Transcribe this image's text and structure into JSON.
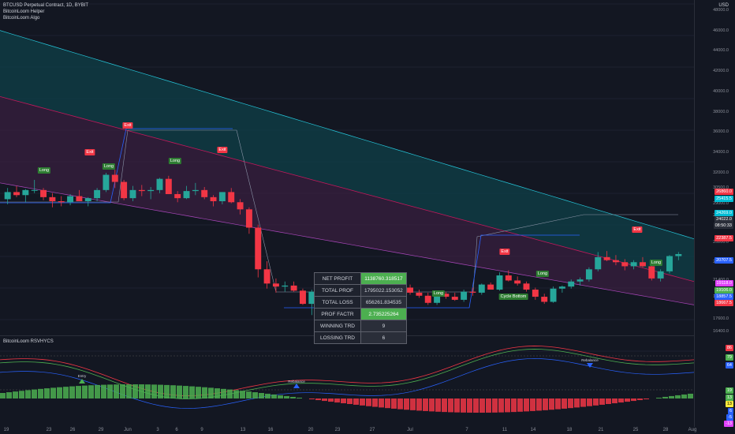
{
  "legend": {
    "title": "BTCUSD Perpetual Contract, 1D, BYBIT",
    "helper": "BitcoinLoom Helper",
    "algo": "BitcoinLoom Algo"
  },
  "axis": {
    "unit": "USD",
    "ticks": [
      "48000.0",
      "46000.0",
      "44000.0",
      "42000.0",
      "40000.0",
      "38000.0",
      "36000.0",
      "34000.0",
      "32000.0",
      "30500.0",
      "29000.0",
      "27800.0",
      "25200.0",
      "23200.0",
      "21400.0",
      "19800.0",
      "17600.0",
      "16400.0"
    ],
    "badges": [
      {
        "text": "26860.0",
        "color": "#f23645"
      },
      {
        "text": "25415.5",
        "color": "#00bcd4"
      },
      {
        "text": "24269.0",
        "color": "#00bcd4"
      },
      {
        "text": "24022.0",
        "color": "#2a2e39"
      },
      {
        "text": "08:50:33",
        "color": "#2a2e39"
      },
      {
        "text": "22387.5",
        "color": "#f23645"
      },
      {
        "text": "20707.5",
        "color": "#2962ff"
      },
      {
        "text": "19118.0",
        "color": "#e040fb"
      },
      {
        "text": "19106.0",
        "color": "#4caf50"
      },
      {
        "text": "18857.5",
        "color": "#2962ff"
      },
      {
        "text": "18667.5",
        "color": "#f23645"
      }
    ],
    "sub_badges": [
      {
        "text": "86",
        "color": "#f23645"
      },
      {
        "text": "79",
        "color": "#4caf50"
      },
      {
        "text": "64",
        "color": "#2962ff"
      },
      {
        "text": "19",
        "color": "#4caf50"
      },
      {
        "text": "13",
        "color": "#4caf50"
      },
      {
        "text": "13",
        "color": "#ffeb3b"
      },
      {
        "text": "6",
        "color": "#2962ff"
      },
      {
        "text": "-5",
        "color": "#2962ff"
      },
      {
        "text": "-13",
        "color": "#e040fb"
      }
    ],
    "x_labels": [
      "19",
      "23",
      "26",
      "29",
      "Jun",
      "3",
      "6",
      "9",
      "13",
      "16",
      "20",
      "23",
      "27",
      "Jul",
      "7",
      "11",
      "14",
      "18",
      "21",
      "25",
      "28",
      "Aug"
    ]
  },
  "signals": {
    "long": "Long",
    "exit": "Exit",
    "cycle_bottom": "Cycle Bottom"
  },
  "stats": [
    {
      "label": "NET PROFIT",
      "value": "1138760.318517",
      "good": true
    },
    {
      "label": "TOTAL PROF",
      "value": "1795022.153052",
      "good": false
    },
    {
      "label": "TOTAL LOSS",
      "value": "656261.834535",
      "good": false
    },
    {
      "label": "PROF FACTR",
      "value": "2.735225264",
      "good": true
    },
    {
      "label": "WINNING TRD",
      "value": "9",
      "good": false
    },
    {
      "label": "LOSSING TRD",
      "value": "6",
      "good": false
    }
  ],
  "oscillator": {
    "title": "BitcoinLoom RSVHYCS",
    "entry": "Entry",
    "rebalance": "Rebalance",
    "rebalance2": "Rebalance"
  },
  "chart_data": {
    "type": "line",
    "ylim": [
      16000,
      49000
    ],
    "candles": [
      [
        29400,
        30500,
        28900,
        30100
      ],
      [
        30100,
        30700,
        29600,
        29800
      ],
      [
        29800,
        30400,
        29100,
        30300
      ],
      [
        30300,
        31300,
        30000,
        30300
      ],
      [
        30300,
        30500,
        29300,
        29600
      ],
      [
        29600,
        30000,
        28600,
        29200
      ],
      [
        29200,
        29700,
        28700,
        29100
      ],
      [
        29100,
        29900,
        28800,
        29700
      ],
      [
        29700,
        30300,
        29300,
        29200
      ],
      [
        29200,
        29600,
        28700,
        29500
      ],
      [
        29500,
        30500,
        29200,
        30300
      ],
      [
        30300,
        32000,
        30100,
        31800
      ],
      [
        31800,
        32300,
        30500,
        31100
      ],
      [
        31100,
        31300,
        29300,
        29500
      ],
      [
        29500,
        30700,
        29200,
        30300
      ],
      [
        30300,
        30800,
        29700,
        30200
      ],
      [
        30200,
        30600,
        29400,
        30300
      ],
      [
        30300,
        31500,
        30000,
        31400
      ],
      [
        31400,
        31700,
        29900,
        29900
      ],
      [
        29900,
        30200,
        29100,
        29500
      ],
      [
        29500,
        30700,
        29400,
        30200
      ],
      [
        30200,
        31000,
        29800,
        30300
      ],
      [
        30300,
        30600,
        29400,
        29600
      ],
      [
        29600,
        29800,
        28700,
        29200
      ],
      [
        29200,
        30100,
        28900,
        30100
      ],
      [
        30100,
        30500,
        29000,
        29100
      ],
      [
        29100,
        29400,
        27900,
        28400
      ],
      [
        28400,
        28600,
        26000,
        26600
      ],
      [
        26600,
        26900,
        21700,
        22500
      ],
      [
        22500,
        23300,
        20600,
        21100
      ],
      [
        21100,
        21600,
        20200,
        20800
      ],
      [
        20800,
        21300,
        20300,
        20900
      ],
      [
        20900,
        21300,
        20300,
        20400
      ],
      [
        20400,
        20600,
        19000,
        19100
      ],
      [
        19100,
        20500,
        18000,
        20300
      ],
      [
        20300,
        21200,
        19800,
        20500
      ],
      [
        20500,
        20900,
        19600,
        20100
      ],
      [
        20100,
        21000,
        19900,
        20700
      ],
      [
        20700,
        21300,
        19900,
        20100
      ],
      [
        20100,
        21200,
        19800,
        21100
      ],
      [
        21100,
        21600,
        20700,
        21300
      ],
      [
        21300,
        21800,
        20900,
        21200
      ],
      [
        21200,
        21400,
        20200,
        20700
      ],
      [
        20700,
        21200,
        20400,
        21000
      ],
      [
        21000,
        21200,
        20400,
        20700
      ],
      [
        20700,
        21000,
        20000,
        20200
      ],
      [
        20200,
        20500,
        19700,
        19900
      ],
      [
        19900,
        20200,
        19000,
        19200
      ],
      [
        19200,
        20400,
        19000,
        20100
      ],
      [
        20100,
        20300,
        19600,
        19800
      ],
      [
        19800,
        20200,
        19400,
        19500
      ],
      [
        19500,
        20500,
        19300,
        20300
      ],
      [
        20300,
        20700,
        19900,
        20200
      ],
      [
        20200,
        21100,
        20000,
        21000
      ],
      [
        21000,
        21200,
        20500,
        20500
      ],
      [
        20500,
        22200,
        20400,
        21900
      ],
      [
        21900,
        22400,
        21300,
        21400
      ],
      [
        21400,
        21800,
        20900,
        21100
      ],
      [
        21100,
        21300,
        20300,
        20500
      ],
      [
        20500,
        20700,
        19500,
        19800
      ],
      [
        19800,
        20100,
        19100,
        19300
      ],
      [
        19300,
        20800,
        19200,
        20600
      ],
      [
        20600,
        20900,
        20200,
        20800
      ],
      [
        20800,
        21500,
        20600,
        21300
      ],
      [
        21300,
        21700,
        20900,
        21500
      ],
      [
        21500,
        22700,
        21300,
        22500
      ],
      [
        22500,
        24200,
        22300,
        23700
      ],
      [
        23700,
        24300,
        23300,
        23400
      ],
      [
        23400,
        23900,
        22900,
        23200
      ],
      [
        23200,
        23500,
        22400,
        22800
      ],
      [
        22800,
        23400,
        22500,
        23200
      ],
      [
        23200,
        23700,
        22700,
        22800
      ],
      [
        22800,
        23000,
        21400,
        21600
      ],
      [
        21600,
        22500,
        21300,
        22300
      ],
      [
        22300,
        23900,
        22100,
        23800
      ],
      [
        23800,
        24200,
        23400,
        24000
      ]
    ]
  }
}
